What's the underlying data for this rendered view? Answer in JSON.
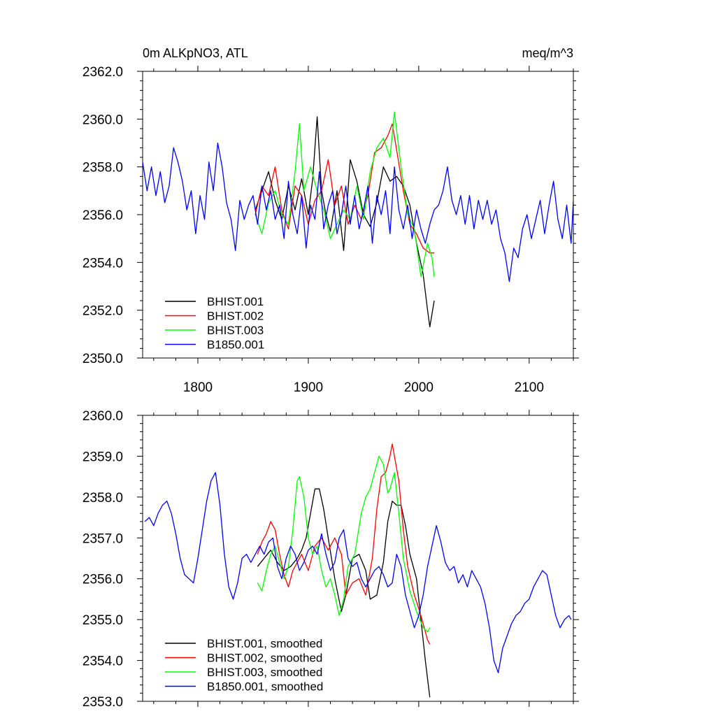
{
  "chart_data": [
    {
      "type": "line",
      "title_left": "0m ALKpNO3, ATL",
      "title_right": "meq/m^3",
      "xlabel": "",
      "ylabel": "",
      "xlim": [
        1750,
        2140
      ],
      "ylim": [
        2350,
        2362
      ],
      "x_ticks": [
        1800,
        1900,
        2000,
        2100
      ],
      "x_tick_labels": [
        "1800",
        "1900",
        "2000",
        "2100"
      ],
      "y_ticks": [
        2350,
        2352,
        2354,
        2356,
        2358,
        2360,
        2362
      ],
      "y_tick_labels": [
        "2350.0",
        "2352.0",
        "2354.0",
        "2356.0",
        "2358.0",
        "2360.0",
        "2362.0"
      ],
      "legend_position": "bottom-left",
      "series": [
        {
          "name": "BHIST.001",
          "color": "#000000",
          "x": [
            1852,
            1858,
            1864,
            1870,
            1876,
            1882,
            1888,
            1894,
            1900,
            1904,
            1908,
            1912,
            1916,
            1920,
            1926,
            1932,
            1938,
            1944,
            1950,
            1956,
            1962,
            1968,
            1974,
            1980,
            1986,
            1992,
            1998,
            2004,
            2008,
            2010,
            2014
          ],
          "y": [
            2356.2,
            2357.0,
            2357.8,
            2356.6,
            2355.8,
            2357.2,
            2356.2,
            2357.5,
            2356.0,
            2357.5,
            2360.1,
            2357.0,
            2356.0,
            2355.3,
            2357.0,
            2354.5,
            2358.3,
            2357.4,
            2356.0,
            2355.5,
            2356.5,
            2358.0,
            2357.4,
            2357.6,
            2357.2,
            2356.4,
            2354.8,
            2353.5,
            2352.0,
            2351.3,
            2352.4
          ]
        },
        {
          "name": "BHIST.002",
          "color": "#ff0000",
          "x": [
            1852,
            1858,
            1864,
            1870,
            1876,
            1882,
            1888,
            1894,
            1900,
            1906,
            1912,
            1918,
            1924,
            1930,
            1936,
            1942,
            1948,
            1954,
            1960,
            1966,
            1972,
            1976,
            1980,
            1986,
            1992,
            1998,
            2004,
            2010,
            2014
          ],
          "y": [
            2356.0,
            2357.2,
            2356.8,
            2358.0,
            2356.2,
            2355.4,
            2357.2,
            2356.8,
            2355.6,
            2356.6,
            2357.0,
            2358.3,
            2356.4,
            2357.2,
            2355.6,
            2356.4,
            2355.8,
            2356.8,
            2358.6,
            2358.8,
            2359.3,
            2359.8,
            2358.7,
            2357.0,
            2355.6,
            2355.2,
            2354.6,
            2354.4,
            2354.4
          ]
        },
        {
          "name": "BHIST.003",
          "color": "#00ff00",
          "x": [
            1852,
            1858,
            1864,
            1870,
            1876,
            1882,
            1888,
            1892,
            1896,
            1902,
            1908,
            1914,
            1920,
            1926,
            1932,
            1938,
            1944,
            1950,
            1956,
            1962,
            1968,
            1974,
            1978,
            1984,
            1990,
            1996,
            2002,
            2008,
            2012,
            2014
          ],
          "y": [
            2356.0,
            2355.2,
            2356.5,
            2357.0,
            2356.0,
            2355.6,
            2357.8,
            2359.8,
            2357.0,
            2358.0,
            2357.0,
            2356.2,
            2355.0,
            2355.6,
            2356.2,
            2355.8,
            2357.2,
            2355.8,
            2357.8,
            2358.8,
            2359.2,
            2358.4,
            2360.3,
            2358.0,
            2356.0,
            2355.4,
            2353.4,
            2354.8,
            2354.2,
            2353.4
          ]
        },
        {
          "name": "B1850.001",
          "color": "#0000ff",
          "x": [
            1750,
            1754,
            1758,
            1762,
            1766,
            1770,
            1774,
            1778,
            1782,
            1786,
            1790,
            1794,
            1798,
            1802,
            1806,
            1810,
            1814,
            1818,
            1822,
            1826,
            1830,
            1834,
            1838,
            1842,
            1846,
            1850,
            1854,
            1858,
            1862,
            1866,
            1870,
            1874,
            1878,
            1882,
            1886,
            1890,
            1894,
            1898,
            1902,
            1906,
            1910,
            1914,
            1918,
            1922,
            1926,
            1930,
            1934,
            1938,
            1942,
            1946,
            1950,
            1954,
            1958,
            1962,
            1966,
            1970,
            1974,
            1978,
            1982,
            1986,
            1990,
            1994,
            1998,
            2002,
            2006,
            2010,
            2014,
            2018,
            2022,
            2026,
            2030,
            2034,
            2038,
            2042,
            2046,
            2050,
            2054,
            2058,
            2062,
            2066,
            2070,
            2074,
            2078,
            2082,
            2086,
            2090,
            2094,
            2098,
            2102,
            2106,
            2110,
            2114,
            2118,
            2122,
            2126,
            2130,
            2134,
            2138,
            2140
          ],
          "y": [
            2358.2,
            2357.0,
            2358.0,
            2356.8,
            2357.8,
            2356.5,
            2357.2,
            2358.8,
            2358.2,
            2357.4,
            2356.2,
            2357.0,
            2355.2,
            2356.8,
            2355.8,
            2358.2,
            2357.0,
            2359.0,
            2358.0,
            2356.5,
            2355.8,
            2354.5,
            2356.6,
            2355.8,
            2356.4,
            2356.8,
            2355.6,
            2357.2,
            2356.2,
            2357.0,
            2355.8,
            2356.4,
            2355.0,
            2357.4,
            2356.0,
            2355.2,
            2356.8,
            2354.6,
            2356.4,
            2355.8,
            2357.8,
            2355.4,
            2356.4,
            2357.0,
            2355.2,
            2356.0,
            2357.2,
            2355.6,
            2356.8,
            2355.4,
            2356.2,
            2357.2,
            2354.8,
            2356.8,
            2356.0,
            2357.0,
            2355.2,
            2358.0,
            2356.2,
            2355.4,
            2356.4,
            2355.0,
            2356.2,
            2355.4,
            2354.8,
            2355.6,
            2356.2,
            2356.4,
            2357.0,
            2358.0,
            2356.6,
            2356.0,
            2356.8,
            2355.6,
            2356.8,
            2355.4,
            2356.6,
            2355.8,
            2356.6,
            2355.6,
            2356.2,
            2355.0,
            2354.4,
            2353.2,
            2354.6,
            2354.2,
            2355.4,
            2356.0,
            2355.0,
            2355.8,
            2356.6,
            2355.2,
            2356.4,
            2357.4,
            2355.8,
            2355.0,
            2356.4,
            2354.8,
            2356.6
          ]
        }
      ]
    },
    {
      "type": "line",
      "title_left": "",
      "title_right": "",
      "xlabel": "",
      "ylabel": "",
      "xlim": [
        1750,
        2140
      ],
      "ylim": [
        2353,
        2360
      ],
      "x_ticks": [
        1800,
        1900,
        2000,
        2100
      ],
      "x_tick_labels": [],
      "y_ticks": [
        2353,
        2354,
        2355,
        2356,
        2357,
        2358,
        2359,
        2360
      ],
      "y_tick_labels": [
        "2353.0",
        "2354.0",
        "2355.0",
        "2356.0",
        "2357.0",
        "2358.0",
        "2359.0",
        "2360.0"
      ],
      "legend_position": "bottom-left",
      "series": [
        {
          "name": "BHIST.001, smoothed",
          "color": "#000000",
          "x": [
            1854,
            1860,
            1866,
            1872,
            1878,
            1884,
            1890,
            1894,
            1898,
            1902,
            1906,
            1910,
            1914,
            1918,
            1924,
            1930,
            1934,
            1940,
            1946,
            1952,
            1956,
            1962,
            1968,
            1972,
            1976,
            1980,
            1984,
            1988,
            1992,
            1998,
            2002,
            2006,
            2010
          ],
          "y": [
            2356.3,
            2356.5,
            2356.7,
            2356.4,
            2356.2,
            2356.3,
            2356.5,
            2356.7,
            2357.0,
            2357.6,
            2358.2,
            2358.2,
            2357.7,
            2357.0,
            2356.0,
            2355.2,
            2355.6,
            2356.5,
            2356.6,
            2356.2,
            2355.5,
            2355.6,
            2356.4,
            2357.4,
            2357.9,
            2357.8,
            2357.8,
            2357.3,
            2356.6,
            2356.0,
            2355.0,
            2354.0,
            2353.1
          ]
        },
        {
          "name": "BHIST.002, smoothed",
          "color": "#ff0000",
          "x": [
            1854,
            1858,
            1862,
            1866,
            1870,
            1874,
            1878,
            1882,
            1886,
            1890,
            1894,
            1900,
            1906,
            1912,
            1918,
            1924,
            1930,
            1934,
            1940,
            1946,
            1952,
            1958,
            1962,
            1966,
            1970,
            1974,
            1976,
            1978,
            1982,
            1986,
            1990,
            1996,
            2002,
            2008,
            2010
          ],
          "y": [
            2356.6,
            2356.9,
            2357.1,
            2357.4,
            2357.2,
            2356.6,
            2356.1,
            2355.8,
            2356.2,
            2356.4,
            2356.6,
            2356.2,
            2356.8,
            2357.0,
            2356.7,
            2357.0,
            2356.6,
            2355.6,
            2355.9,
            2356.0,
            2355.6,
            2356.5,
            2357.7,
            2358.5,
            2358.6,
            2359.0,
            2359.3,
            2359.0,
            2358.4,
            2357.2,
            2356.3,
            2355.6,
            2355.1,
            2354.5,
            2354.4
          ]
        },
        {
          "name": "BHIST.003, smoothed",
          "color": "#00ff00",
          "x": [
            1854,
            1858,
            1862,
            1866,
            1870,
            1874,
            1878,
            1882,
            1886,
            1890,
            1892,
            1896,
            1900,
            1904,
            1908,
            1912,
            1916,
            1920,
            1924,
            1928,
            1932,
            1936,
            1942,
            1948,
            1952,
            1956,
            1960,
            1964,
            1968,
            1972,
            1974,
            1978,
            1982,
            1986,
            1992,
            1998,
            2004,
            2008,
            2010
          ],
          "y": [
            2355.9,
            2355.7,
            2356.2,
            2356.6,
            2356.8,
            2356.4,
            2356.0,
            2356.3,
            2357.2,
            2358.4,
            2358.5,
            2358.0,
            2357.0,
            2356.6,
            2356.8,
            2356.2,
            2355.8,
            2356.0,
            2355.6,
            2355.1,
            2355.5,
            2356.3,
            2356.6,
            2357.6,
            2358.0,
            2358.2,
            2358.6,
            2359.0,
            2358.8,
            2358.1,
            2358.2,
            2358.6,
            2357.6,
            2356.5,
            2355.7,
            2355.2,
            2354.8,
            2354.7,
            2354.8
          ]
        },
        {
          "name": "B1850.001, smoothed",
          "color": "#0000ff",
          "x": [
            1752,
            1756,
            1760,
            1764,
            1768,
            1772,
            1776,
            1780,
            1784,
            1788,
            1792,
            1796,
            1800,
            1804,
            1808,
            1812,
            1816,
            1820,
            1824,
            1828,
            1832,
            1836,
            1840,
            1844,
            1848,
            1852,
            1856,
            1860,
            1864,
            1868,
            1872,
            1876,
            1880,
            1884,
            1888,
            1892,
            1896,
            1900,
            1904,
            1908,
            1912,
            1916,
            1920,
            1924,
            1928,
            1932,
            1936,
            1940,
            1944,
            1948,
            1952,
            1956,
            1960,
            1964,
            1968,
            1972,
            1976,
            1980,
            1984,
            1988,
            1992,
            1996,
            2000,
            2004,
            2008,
            2012,
            2016,
            2020,
            2024,
            2028,
            2032,
            2036,
            2040,
            2044,
            2048,
            2052,
            2056,
            2060,
            2064,
            2068,
            2072,
            2076,
            2080,
            2084,
            2088,
            2092,
            2096,
            2100,
            2104,
            2108,
            2112,
            2116,
            2120,
            2124,
            2128,
            2132,
            2136,
            2138
          ],
          "y": [
            2357.4,
            2357.5,
            2357.3,
            2357.6,
            2357.8,
            2357.9,
            2357.6,
            2357.1,
            2356.5,
            2356.1,
            2356.0,
            2355.9,
            2356.5,
            2357.2,
            2357.9,
            2358.4,
            2358.6,
            2357.8,
            2356.6,
            2355.8,
            2355.5,
            2355.9,
            2356.5,
            2356.6,
            2356.4,
            2356.6,
            2356.8,
            2356.6,
            2356.9,
            2357.0,
            2356.3,
            2356.0,
            2356.5,
            2356.8,
            2356.6,
            2356.2,
            2356.4,
            2356.7,
            2356.8,
            2356.6,
            2357.1,
            2356.6,
            2356.2,
            2356.4,
            2357.0,
            2357.2,
            2356.5,
            2356.3,
            2356.4,
            2356.0,
            2355.8,
            2356.0,
            2356.2,
            2356.3,
            2356.1,
            2355.8,
            2355.9,
            2356.6,
            2356.3,
            2355.6,
            2355.2,
            2354.8,
            2355.1,
            2355.6,
            2356.3,
            2356.8,
            2357.3,
            2356.9,
            2356.4,
            2356.2,
            2356.3,
            2355.9,
            2356.1,
            2355.8,
            2356.2,
            2356.0,
            2355.8,
            2355.4,
            2354.8,
            2354.0,
            2353.7,
            2354.3,
            2354.6,
            2354.9,
            2355.1,
            2355.2,
            2355.4,
            2355.5,
            2355.8,
            2356.0,
            2356.2,
            2356.1,
            2355.6,
            2355.1,
            2354.8,
            2355.0,
            2355.1,
            2355.0
          ]
        }
      ]
    }
  ]
}
